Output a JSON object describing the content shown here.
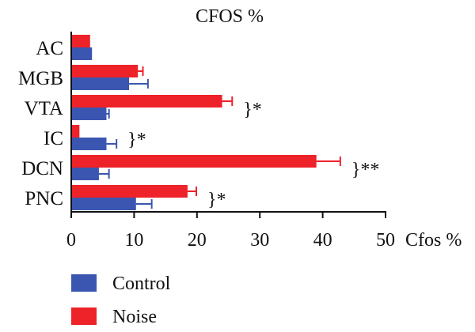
{
  "chart_data": {
    "type": "bar",
    "orientation": "horizontal",
    "title": "CFOS %",
    "xlabel": "Cfos %",
    "ylabel": "",
    "xlim": [
      0,
      50
    ],
    "xticks": [
      0,
      10,
      20,
      30,
      40,
      50
    ],
    "categories": [
      "AC",
      "MGB",
      "VTA",
      "IC",
      "DCN",
      "PNC"
    ],
    "series": [
      {
        "name": "Control",
        "color": "#3A56B0",
        "values": [
          3.3,
          9.2,
          5.6,
          5.6,
          4.4,
          10.3
        ],
        "errors": [
          0.0,
          3.0,
          0.4,
          1.6,
          1.6,
          2.5
        ]
      },
      {
        "name": "Noise",
        "color": "#EE2229",
        "values": [
          3.0,
          10.6,
          24.0,
          1.3,
          39.0,
          18.5
        ],
        "errors": [
          0.0,
          0.8,
          1.6,
          0.0,
          3.8,
          1.4
        ]
      }
    ],
    "significance": [
      {
        "category": "VTA",
        "label": "}*"
      },
      {
        "category": "IC",
        "label": "}*"
      },
      {
        "category": "DCN",
        "label": "}**"
      },
      {
        "category": "PNC",
        "label": "}*"
      }
    ],
    "legend": {
      "position": "bottom-left",
      "entries": [
        "Control",
        "Noise"
      ]
    },
    "grid": false
  }
}
